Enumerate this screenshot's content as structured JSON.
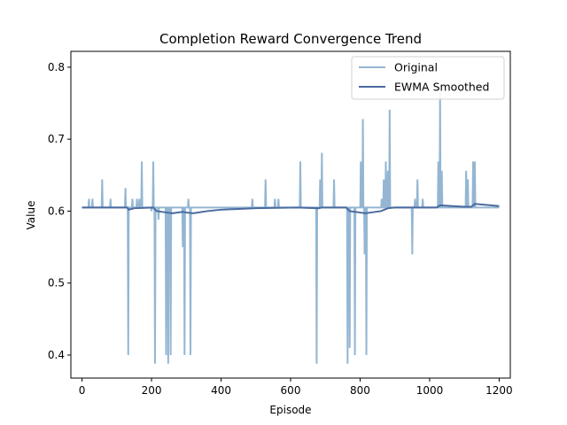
{
  "chart_data": {
    "type": "line",
    "title": "Completion Reward Convergence Trend",
    "xlabel": "Episode",
    "ylabel": "Value",
    "xlim": [
      -32,
      1232
    ],
    "ylim": [
      0.368,
      0.822
    ],
    "xticks": [
      0,
      200,
      400,
      600,
      800,
      1000,
      1200
    ],
    "yticks": [
      0.4,
      0.5,
      0.6,
      0.7,
      0.8
    ],
    "ytick_labels": [
      "0.4",
      "0.5",
      "0.6",
      "0.7",
      "0.8"
    ],
    "legend": {
      "position": "top-right"
    },
    "grid": false,
    "colors": {
      "original": "#94b6d2",
      "smoothed": "#4a6aa0"
    },
    "series": [
      {
        "name": "Original",
        "baseline": 0.605,
        "spikes": [
          [
            20,
            0.617
          ],
          [
            30,
            0.617
          ],
          [
            58,
            0.644
          ],
          [
            82,
            0.617
          ],
          [
            125,
            0.632
          ],
          [
            133,
            0.4
          ],
          [
            145,
            0.617
          ],
          [
            158,
            0.617
          ],
          [
            165,
            0.617
          ],
          [
            172,
            0.669
          ],
          [
            200,
            0.6
          ],
          [
            205,
            0.669
          ],
          [
            210,
            0.388
          ],
          [
            220,
            0.588
          ],
          [
            242,
            0.4
          ],
          [
            248,
            0.388
          ],
          [
            255,
            0.4
          ],
          [
            290,
            0.55
          ],
          [
            295,
            0.4
          ],
          [
            306,
            0.617
          ],
          [
            312,
            0.4
          ],
          [
            490,
            0.617
          ],
          [
            528,
            0.644
          ],
          [
            555,
            0.617
          ],
          [
            565,
            0.617
          ],
          [
            628,
            0.669
          ],
          [
            675,
            0.388
          ],
          [
            685,
            0.644
          ],
          [
            690,
            0.681
          ],
          [
            725,
            0.644
          ],
          [
            764,
            0.388
          ],
          [
            770,
            0.41
          ],
          [
            785,
            0.4
          ],
          [
            802,
            0.669
          ],
          [
            808,
            0.728
          ],
          [
            813,
            0.54
          ],
          [
            818,
            0.4
          ],
          [
            862,
            0.617
          ],
          [
            868,
            0.644
          ],
          [
            874,
            0.669
          ],
          [
            880,
            0.656
          ],
          [
            885,
            0.741
          ],
          [
            950,
            0.54
          ],
          [
            958,
            0.617
          ],
          [
            965,
            0.644
          ],
          [
            980,
            0.617
          ],
          [
            1025,
            0.669
          ],
          [
            1030,
            0.765
          ],
          [
            1035,
            0.656
          ],
          [
            1105,
            0.656
          ],
          [
            1110,
            0.644
          ],
          [
            1125,
            0.669
          ],
          [
            1130,
            0.669
          ]
        ]
      },
      {
        "name": "EWMA Smoothed",
        "points": [
          [
            0,
            0.605
          ],
          [
            130,
            0.605
          ],
          [
            135,
            0.602
          ],
          [
            150,
            0.604
          ],
          [
            205,
            0.605
          ],
          [
            215,
            0.6
          ],
          [
            245,
            0.598
          ],
          [
            260,
            0.597
          ],
          [
            290,
            0.599
          ],
          [
            300,
            0.598
          ],
          [
            320,
            0.597
          ],
          [
            360,
            0.6
          ],
          [
            400,
            0.602
          ],
          [
            450,
            0.603
          ],
          [
            500,
            0.604
          ],
          [
            620,
            0.605
          ],
          [
            680,
            0.604
          ],
          [
            690,
            0.605
          ],
          [
            760,
            0.605
          ],
          [
            770,
            0.6
          ],
          [
            800,
            0.598
          ],
          [
            815,
            0.597
          ],
          [
            830,
            0.598
          ],
          [
            860,
            0.6
          ],
          [
            880,
            0.604
          ],
          [
            900,
            0.605
          ],
          [
            1020,
            0.605
          ],
          [
            1030,
            0.608
          ],
          [
            1100,
            0.606
          ],
          [
            1120,
            0.606
          ],
          [
            1130,
            0.61
          ],
          [
            1200,
            0.607
          ]
        ]
      }
    ]
  }
}
